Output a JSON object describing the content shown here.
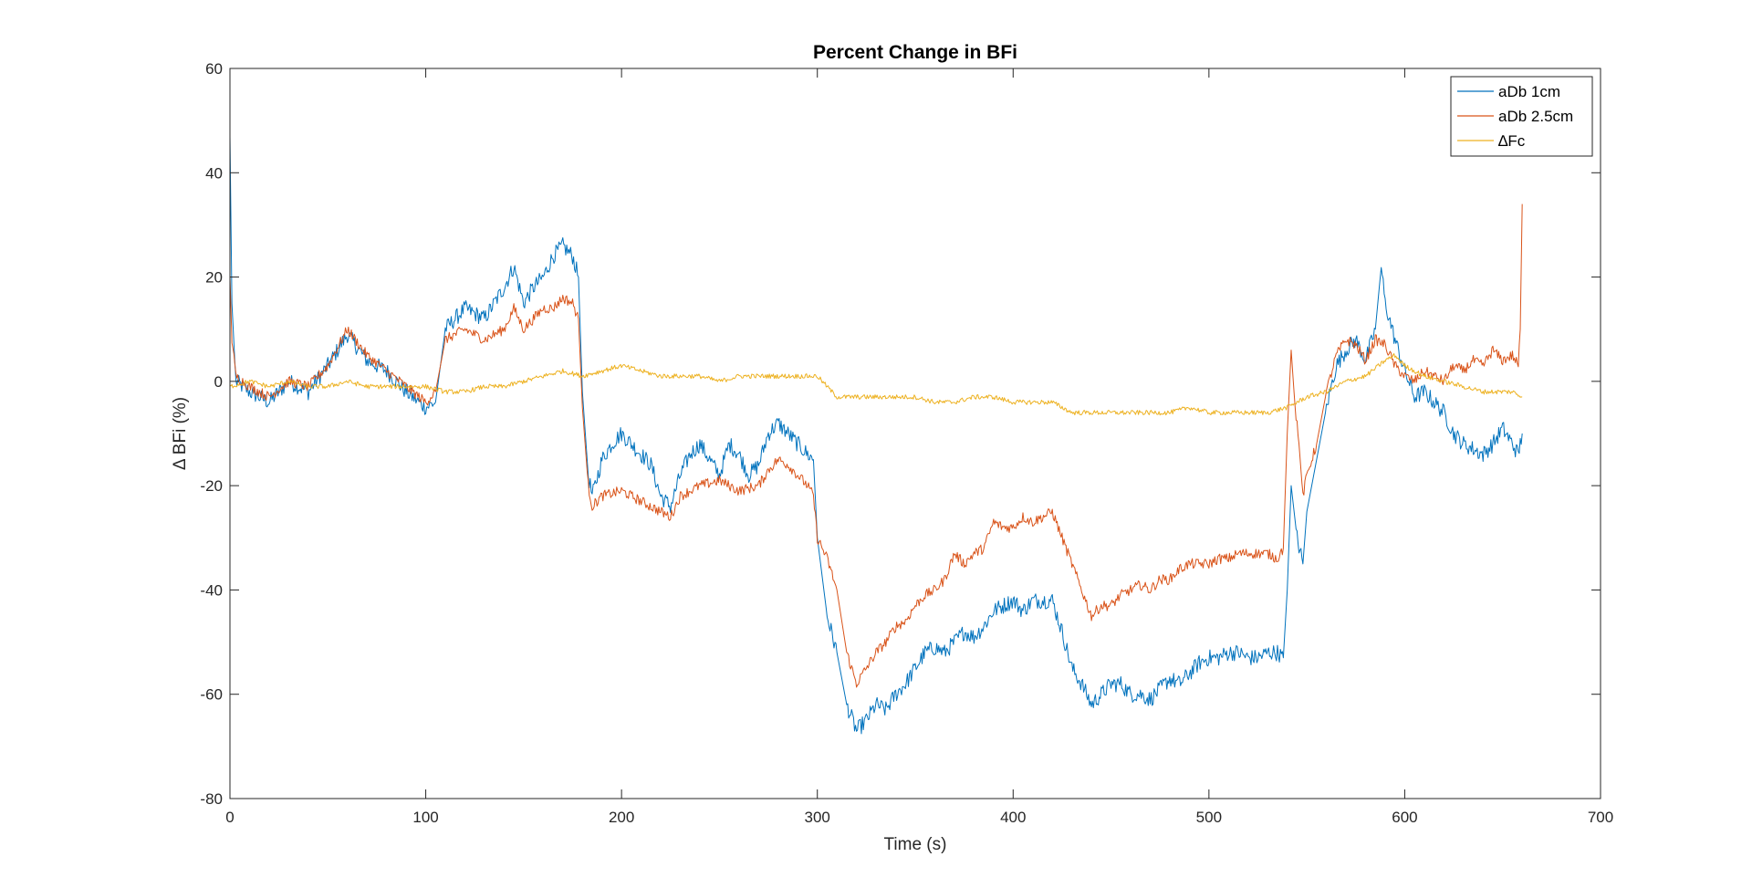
{
  "chart_data": {
    "type": "line",
    "title": "Percent Change in BFi",
    "xlabel": "Time (s)",
    "ylabel": "Δ BFi (%)",
    "xlim": [
      0,
      700
    ],
    "ylim": [
      -80,
      60
    ],
    "xticks": [
      0,
      100,
      200,
      300,
      400,
      500,
      600,
      700
    ],
    "yticks": [
      -80,
      -60,
      -40,
      -20,
      0,
      20,
      40,
      60
    ],
    "grid": false,
    "legend_position": "top-right",
    "series": [
      {
        "name": "aDb 1cm",
        "color": "#0072BD",
        "points": [
          [
            0,
            47
          ],
          [
            1,
            15
          ],
          [
            3,
            0
          ],
          [
            10,
            -2
          ],
          [
            20,
            -4
          ],
          [
            30,
            0
          ],
          [
            40,
            -2
          ],
          [
            50,
            3
          ],
          [
            60,
            9
          ],
          [
            70,
            4
          ],
          [
            80,
            2
          ],
          [
            90,
            -2
          ],
          [
            100,
            -5
          ],
          [
            105,
            -4
          ],
          [
            110,
            10
          ],
          [
            120,
            14
          ],
          [
            130,
            12
          ],
          [
            140,
            18
          ],
          [
            145,
            22
          ],
          [
            150,
            15
          ],
          [
            155,
            18
          ],
          [
            160,
            20
          ],
          [
            165,
            24
          ],
          [
            170,
            26
          ],
          [
            175,
            24
          ],
          [
            178,
            20
          ],
          [
            180,
            -2
          ],
          [
            183,
            -18
          ],
          [
            185,
            -22
          ],
          [
            190,
            -15
          ],
          [
            195,
            -12
          ],
          [
            200,
            -10
          ],
          [
            205,
            -12
          ],
          [
            210,
            -14
          ],
          [
            215,
            -16
          ],
          [
            220,
            -22
          ],
          [
            225,
            -24
          ],
          [
            230,
            -18
          ],
          [
            235,
            -14
          ],
          [
            240,
            -12
          ],
          [
            245,
            -15
          ],
          [
            250,
            -18
          ],
          [
            255,
            -12
          ],
          [
            260,
            -14
          ],
          [
            265,
            -18
          ],
          [
            270,
            -16
          ],
          [
            275,
            -10
          ],
          [
            280,
            -8
          ],
          [
            285,
            -10
          ],
          [
            290,
            -12
          ],
          [
            295,
            -14
          ],
          [
            298,
            -15
          ],
          [
            300,
            -30
          ],
          [
            305,
            -45
          ],
          [
            310,
            -52
          ],
          [
            315,
            -62
          ],
          [
            320,
            -67
          ],
          [
            325,
            -65
          ],
          [
            330,
            -62
          ],
          [
            335,
            -63
          ],
          [
            340,
            -60
          ],
          [
            345,
            -58
          ],
          [
            350,
            -55
          ],
          [
            355,
            -52
          ],
          [
            360,
            -51
          ],
          [
            365,
            -52
          ],
          [
            370,
            -50
          ],
          [
            375,
            -48
          ],
          [
            380,
            -49
          ],
          [
            385,
            -47
          ],
          [
            390,
            -44
          ],
          [
            395,
            -43
          ],
          [
            400,
            -42
          ],
          [
            405,
            -44
          ],
          [
            410,
            -42
          ],
          [
            415,
            -42
          ],
          [
            420,
            -42
          ],
          [
            425,
            -48
          ],
          [
            430,
            -55
          ],
          [
            435,
            -58
          ],
          [
            440,
            -62
          ],
          [
            445,
            -60
          ],
          [
            450,
            -58
          ],
          [
            455,
            -58
          ],
          [
            460,
            -60
          ],
          [
            465,
            -60
          ],
          [
            470,
            -61
          ],
          [
            475,
            -59
          ],
          [
            480,
            -57
          ],
          [
            485,
            -58
          ],
          [
            490,
            -56
          ],
          [
            495,
            -54
          ],
          [
            500,
            -53
          ],
          [
            505,
            -53
          ],
          [
            510,
            -52
          ],
          [
            515,
            -52
          ],
          [
            520,
            -53
          ],
          [
            525,
            -53
          ],
          [
            530,
            -52
          ],
          [
            535,
            -52
          ],
          [
            538,
            -53
          ],
          [
            540,
            -40
          ],
          [
            542,
            -20
          ],
          [
            545,
            -30
          ],
          [
            548,
            -35
          ],
          [
            550,
            -25
          ],
          [
            555,
            -15
          ],
          [
            560,
            -5
          ],
          [
            565,
            3
          ],
          [
            570,
            6
          ],
          [
            575,
            8
          ],
          [
            580,
            4
          ],
          [
            585,
            10
          ],
          [
            588,
            22
          ],
          [
            590,
            15
          ],
          [
            595,
            8
          ],
          [
            600,
            2
          ],
          [
            605,
            -3
          ],
          [
            610,
            -2
          ],
          [
            615,
            -4
          ],
          [
            620,
            -6
          ],
          [
            625,
            -10
          ],
          [
            630,
            -12
          ],
          [
            635,
            -13
          ],
          [
            640,
            -14
          ],
          [
            645,
            -12
          ],
          [
            650,
            -9
          ],
          [
            655,
            -12
          ],
          [
            658,
            -14
          ],
          [
            660,
            -10
          ]
        ]
      },
      {
        "name": "aDb 2.5cm",
        "color": "#D95319",
        "points": [
          [
            0,
            20
          ],
          [
            1,
            8
          ],
          [
            3,
            1
          ],
          [
            10,
            -1
          ],
          [
            20,
            -3
          ],
          [
            30,
            0
          ],
          [
            40,
            -1
          ],
          [
            50,
            3
          ],
          [
            60,
            10
          ],
          [
            70,
            5
          ],
          [
            80,
            2
          ],
          [
            90,
            -1
          ],
          [
            100,
            -4
          ],
          [
            105,
            -2
          ],
          [
            110,
            8
          ],
          [
            120,
            10
          ],
          [
            130,
            8
          ],
          [
            140,
            10
          ],
          [
            145,
            14
          ],
          [
            150,
            10
          ],
          [
            155,
            12
          ],
          [
            160,
            14
          ],
          [
            165,
            14
          ],
          [
            170,
            16
          ],
          [
            175,
            15
          ],
          [
            178,
            12
          ],
          [
            180,
            -5
          ],
          [
            183,
            -20
          ],
          [
            185,
            -24
          ],
          [
            190,
            -22
          ],
          [
            200,
            -21
          ],
          [
            210,
            -23
          ],
          [
            220,
            -25
          ],
          [
            225,
            -26
          ],
          [
            230,
            -22
          ],
          [
            240,
            -20
          ],
          [
            250,
            -19
          ],
          [
            260,
            -21
          ],
          [
            270,
            -20
          ],
          [
            275,
            -17
          ],
          [
            280,
            -15
          ],
          [
            285,
            -16
          ],
          [
            290,
            -18
          ],
          [
            295,
            -20
          ],
          [
            298,
            -22
          ],
          [
            300,
            -30
          ],
          [
            305,
            -34
          ],
          [
            310,
            -40
          ],
          [
            315,
            -52
          ],
          [
            320,
            -58
          ],
          [
            325,
            -55
          ],
          [
            330,
            -52
          ],
          [
            335,
            -50
          ],
          [
            340,
            -47
          ],
          [
            345,
            -46
          ],
          [
            350,
            -43
          ],
          [
            355,
            -41
          ],
          [
            360,
            -40
          ],
          [
            365,
            -38
          ],
          [
            370,
            -33
          ],
          [
            375,
            -35
          ],
          [
            380,
            -33
          ],
          [
            385,
            -32
          ],
          [
            390,
            -27
          ],
          [
            395,
            -28
          ],
          [
            400,
            -28
          ],
          [
            405,
            -26
          ],
          [
            410,
            -27
          ],
          [
            415,
            -26
          ],
          [
            420,
            -25
          ],
          [
            425,
            -30
          ],
          [
            430,
            -35
          ],
          [
            435,
            -40
          ],
          [
            440,
            -45
          ],
          [
            445,
            -43
          ],
          [
            450,
            -43
          ],
          [
            455,
            -41
          ],
          [
            460,
            -40
          ],
          [
            465,
            -39
          ],
          [
            470,
            -40
          ],
          [
            475,
            -38
          ],
          [
            480,
            -38
          ],
          [
            485,
            -36
          ],
          [
            490,
            -35
          ],
          [
            495,
            -35
          ],
          [
            500,
            -35
          ],
          [
            505,
            -34
          ],
          [
            510,
            -34
          ],
          [
            515,
            -33
          ],
          [
            520,
            -33
          ],
          [
            525,
            -33
          ],
          [
            530,
            -33
          ],
          [
            535,
            -34
          ],
          [
            538,
            -32
          ],
          [
            540,
            -10
          ],
          [
            542,
            6
          ],
          [
            544,
            -5
          ],
          [
            546,
            -12
          ],
          [
            548,
            -22
          ],
          [
            550,
            -18
          ],
          [
            555,
            -12
          ],
          [
            560,
            -2
          ],
          [
            565,
            5
          ],
          [
            570,
            8
          ],
          [
            575,
            7
          ],
          [
            580,
            4
          ],
          [
            585,
            8
          ],
          [
            590,
            7
          ],
          [
            595,
            3
          ],
          [
            600,
            1
          ],
          [
            605,
            0
          ],
          [
            610,
            2
          ],
          [
            615,
            1
          ],
          [
            620,
            0
          ],
          [
            625,
            3
          ],
          [
            630,
            2
          ],
          [
            635,
            4
          ],
          [
            640,
            3
          ],
          [
            645,
            6
          ],
          [
            650,
            4
          ],
          [
            655,
            5
          ],
          [
            658,
            3
          ],
          [
            659,
            10
          ],
          [
            660,
            34
          ]
        ]
      },
      {
        "name": "∆Fc",
        "color": "#EDB120",
        "points": [
          [
            0,
            -1
          ],
          [
            10,
            0
          ],
          [
            20,
            -1
          ],
          [
            30,
            0
          ],
          [
            40,
            -1
          ],
          [
            50,
            -1
          ],
          [
            60,
            0
          ],
          [
            70,
            -1
          ],
          [
            80,
            -1
          ],
          [
            90,
            -1
          ],
          [
            100,
            -1
          ],
          [
            110,
            -2
          ],
          [
            120,
            -2
          ],
          [
            130,
            -1
          ],
          [
            140,
            -1
          ],
          [
            150,
            0
          ],
          [
            160,
            1
          ],
          [
            170,
            2
          ],
          [
            180,
            1
          ],
          [
            190,
            2
          ],
          [
            200,
            3
          ],
          [
            210,
            2
          ],
          [
            220,
            1
          ],
          [
            230,
            1
          ],
          [
            240,
            1
          ],
          [
            250,
            0
          ],
          [
            260,
            1
          ],
          [
            270,
            1
          ],
          [
            280,
            1
          ],
          [
            290,
            1
          ],
          [
            300,
            1
          ],
          [
            305,
            -1
          ],
          [
            310,
            -3
          ],
          [
            320,
            -3
          ],
          [
            330,
            -3
          ],
          [
            340,
            -3
          ],
          [
            350,
            -3
          ],
          [
            360,
            -4
          ],
          [
            370,
            -4
          ],
          [
            380,
            -3
          ],
          [
            390,
            -3
          ],
          [
            400,
            -4
          ],
          [
            410,
            -4
          ],
          [
            420,
            -4
          ],
          [
            425,
            -5
          ],
          [
            430,
            -6
          ],
          [
            440,
            -6
          ],
          [
            450,
            -6
          ],
          [
            460,
            -6
          ],
          [
            470,
            -6
          ],
          [
            480,
            -6
          ],
          [
            490,
            -5
          ],
          [
            500,
            -6
          ],
          [
            510,
            -6
          ],
          [
            520,
            -6
          ],
          [
            530,
            -6
          ],
          [
            540,
            -5
          ],
          [
            545,
            -4
          ],
          [
            550,
            -3
          ],
          [
            560,
            -2
          ],
          [
            570,
            0
          ],
          [
            580,
            1
          ],
          [
            590,
            4
          ],
          [
            595,
            5
          ],
          [
            600,
            3
          ],
          [
            610,
            1
          ],
          [
            620,
            0
          ],
          [
            630,
            -1
          ],
          [
            640,
            -2
          ],
          [
            650,
            -2
          ],
          [
            655,
            -2
          ],
          [
            660,
            -3
          ]
        ]
      }
    ]
  }
}
